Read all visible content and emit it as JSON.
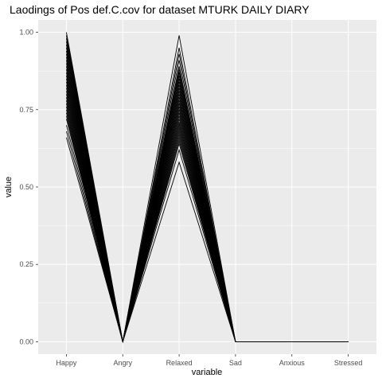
{
  "chart_data": {
    "type": "line",
    "title": "Laodings of Pos def.C.cov for dataset MTURK DAILY DIARY",
    "xlabel": "variable",
    "ylabel": "value",
    "categories": [
      "Happy",
      "Angry",
      "Relaxed",
      "Sad",
      "Anxious",
      "Stressed"
    ],
    "ylim": [
      -0.04,
      1.04
    ],
    "yticks": [
      0.0,
      0.25,
      0.5,
      0.75,
      1.0
    ],
    "ytick_labels": [
      "0.00",
      "0.25",
      "0.50",
      "0.75",
      "1.00"
    ],
    "grid": true,
    "legend": "none",
    "background_color": "#ebebeb",
    "gridline_color": "#ffffff",
    "line_color": "#000000",
    "series": [
      {
        "values": [
          1.0,
          0,
          0.99,
          0,
          0,
          0
        ]
      },
      {
        "values": [
          0.99,
          0,
          0.95,
          0,
          0,
          0
        ]
      },
      {
        "values": [
          0.98,
          0,
          0.93,
          0,
          0,
          0
        ]
      },
      {
        "values": [
          0.97,
          0,
          0.91,
          0,
          0,
          0
        ]
      },
      {
        "values": [
          0.96,
          0,
          0.89,
          0,
          0,
          0
        ]
      },
      {
        "values": [
          0.95,
          0,
          0.88,
          0,
          0,
          0
        ]
      },
      {
        "values": [
          0.94,
          0,
          0.87,
          0,
          0,
          0
        ]
      },
      {
        "values": [
          0.93,
          0,
          0.86,
          0,
          0,
          0
        ]
      },
      {
        "values": [
          0.92,
          0,
          0.85,
          0,
          0,
          0
        ]
      },
      {
        "values": [
          0.91,
          0,
          0.84,
          0,
          0,
          0
        ]
      },
      {
        "values": [
          0.9,
          0,
          0.83,
          0,
          0,
          0
        ]
      },
      {
        "values": [
          0.89,
          0,
          0.82,
          0,
          0,
          0
        ]
      },
      {
        "values": [
          0.88,
          0,
          0.81,
          0,
          0,
          0
        ]
      },
      {
        "values": [
          0.87,
          0,
          0.8,
          0,
          0,
          0
        ]
      },
      {
        "values": [
          0.86,
          0,
          0.79,
          0,
          0,
          0
        ]
      },
      {
        "values": [
          0.85,
          0,
          0.78,
          0,
          0,
          0
        ]
      },
      {
        "values": [
          0.84,
          0,
          0.77,
          0,
          0,
          0
        ]
      },
      {
        "values": [
          0.83,
          0,
          0.76,
          0,
          0,
          0
        ]
      },
      {
        "values": [
          0.82,
          0,
          0.75,
          0,
          0,
          0
        ]
      },
      {
        "values": [
          0.81,
          0,
          0.74,
          0,
          0,
          0
        ]
      },
      {
        "values": [
          0.8,
          0,
          0.73,
          0,
          0,
          0
        ]
      },
      {
        "values": [
          0.79,
          0,
          0.72,
          0,
          0,
          0
        ]
      },
      {
        "values": [
          0.78,
          0,
          0.71,
          0,
          0,
          0
        ]
      },
      {
        "values": [
          0.77,
          0,
          0.7,
          0,
          0,
          0
        ]
      },
      {
        "values": [
          0.76,
          0,
          0.69,
          0,
          0,
          0
        ]
      },
      {
        "values": [
          0.75,
          0,
          0.68,
          0,
          0,
          0
        ]
      },
      {
        "values": [
          0.74,
          0,
          0.67,
          0,
          0,
          0
        ]
      },
      {
        "values": [
          0.73,
          0,
          0.66,
          0,
          0,
          0
        ]
      },
      {
        "values": [
          0.72,
          0,
          0.65,
          0,
          0,
          0
        ]
      },
      {
        "values": [
          0.7,
          0,
          0.64,
          0,
          0,
          0
        ]
      },
      {
        "values": [
          0.68,
          0,
          0.62,
          0,
          0,
          0
        ]
      },
      {
        "values": [
          0.66,
          0,
          0.58,
          0,
          0,
          0
        ]
      }
    ]
  }
}
